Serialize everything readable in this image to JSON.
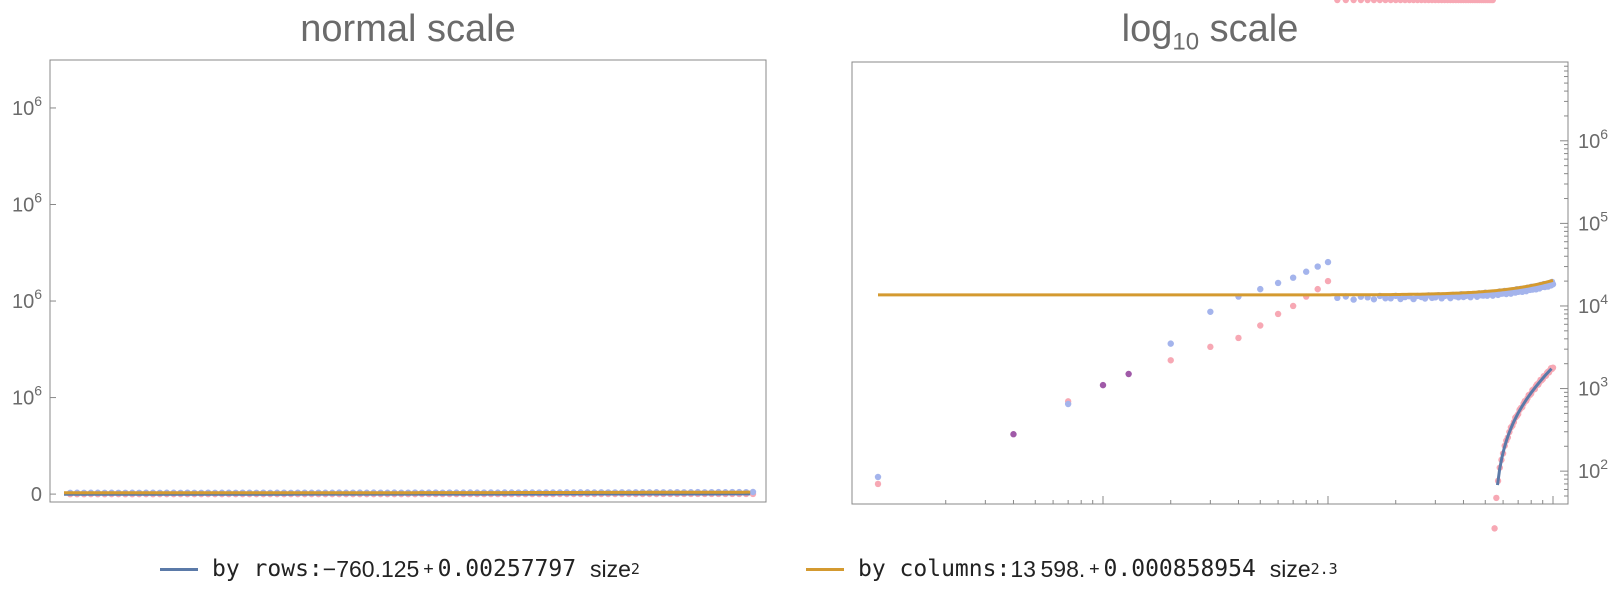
{
  "titles": {
    "left": "normal scale",
    "right_main": "log",
    "right_sub": "10",
    "right_tail": " scale"
  },
  "colors": {
    "rows_fit": "#5b7aa8",
    "cols_fit": "#d49a30",
    "rows_points": "#f7a8b4",
    "cols_points": "#a4b4ec",
    "overlap_points": "#a05aa8",
    "frame": "#888888"
  },
  "legend": {
    "rows": {
      "label": "by rows: ",
      "const": "−760.125",
      "plus": "+",
      "coef": "0.00257797",
      "var": "size",
      "exp": "2"
    },
    "cols": {
      "label": "by columns: ",
      "const": "13 598.",
      "plus": "+",
      "coef": "0.000858954",
      "var": "size",
      "exp": "2.3"
    }
  },
  "chart_data": [
    {
      "type": "scatter",
      "title": "normal scale",
      "y_tick_labels": [
        "0",
        "10^6",
        "10^6",
        "10^6",
        "10^6"
      ],
      "x_tick_labels": [],
      "xlim": [
        1,
        1000
      ],
      "ylim": [
        -30000,
        4300000
      ],
      "series": [
        {
          "name": "by rows",
          "kind": "fit",
          "formula": "-760.125 + 0.00257797*size^2"
        },
        {
          "name": "by columns",
          "kind": "fit",
          "formula": "13598. + 0.000858954*size^2.3"
        }
      ],
      "points_rows": {
        "x_start": 10,
        "x_step": 10,
        "count": 100,
        "approx": "-760.125 + 0.00257797*size^2"
      },
      "points_cols": {
        "x_start": 10,
        "x_step": 10,
        "count": 100,
        "approx": "13598. + 0.000858954*size^2.3"
      }
    },
    {
      "type": "scatter",
      "title": "log10 scale",
      "y_scale": "log",
      "x_scale": "log",
      "y_tick_labels": [
        "10^2",
        "10^3",
        "10^4",
        "10^5",
        "10^6"
      ],
      "x_tick_labels": [],
      "xlim": [
        1,
        1000
      ],
      "ylim": [
        40,
        9000000
      ],
      "series": [
        {
          "name": "by rows",
          "kind": "fit",
          "formula": "-760.125 + 0.00257797*size^2"
        },
        {
          "name": "by columns",
          "kind": "fit",
          "formula": "13598. + 0.000858954*size^2.3"
        }
      ],
      "sparse_points": [
        {
          "x": 1,
          "rows": 70,
          "cols": 85
        },
        {
          "x": 4,
          "rows": 280,
          "cols": 280
        },
        {
          "x": 7,
          "rows": 700,
          "cols": 650
        },
        {
          "x": 10,
          "rows": 1100,
          "cols": 1050
        },
        {
          "x": 13,
          "rows": 1500,
          "cols": 1500
        },
        {
          "x": 20,
          "rows": 2200,
          "cols": 3500
        },
        {
          "x": 30,
          "rows": 3200,
          "cols": 8500
        },
        {
          "x": 40,
          "rows": 4100,
          "cols": 13000
        },
        {
          "x": 50,
          "rows": 5800,
          "cols": 16000
        },
        {
          "x": 60,
          "rows": 8000,
          "cols": 19000
        },
        {
          "x": 70,
          "rows": 10000,
          "cols": 22000
        },
        {
          "x": 80,
          "rows": 13000,
          "cols": 26000
        },
        {
          "x": 90,
          "rows": 16000,
          "cols": 30000
        },
        {
          "x": 100,
          "rows": 20000,
          "cols": 34000
        }
      ]
    }
  ]
}
